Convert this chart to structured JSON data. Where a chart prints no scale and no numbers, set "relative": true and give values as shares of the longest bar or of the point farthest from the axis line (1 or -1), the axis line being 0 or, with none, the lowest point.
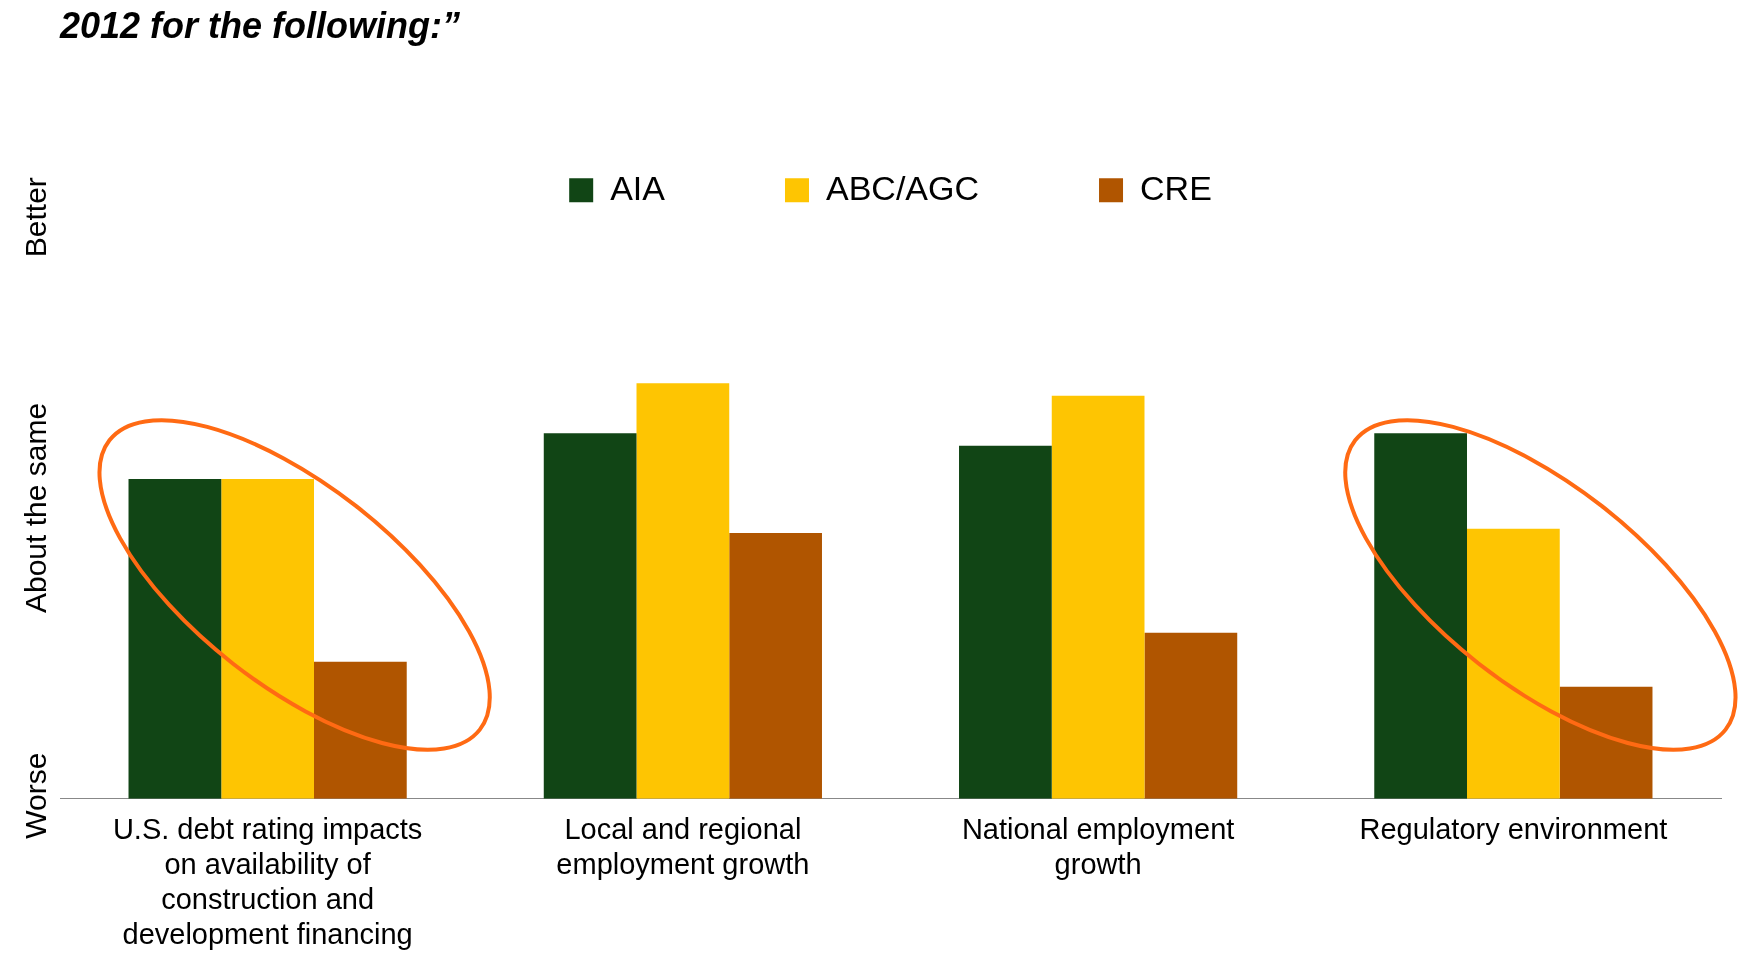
{
  "chart_data": {
    "type": "bar",
    "title": "2012 for the following:”",
    "categories": [
      "U.S. debt rating impacts on availability of construction and development financing",
      "Local and regional employment growth",
      "National employment growth",
      "Regulatory environment"
    ],
    "series": [
      {
        "name": "AIA",
        "color": "#114515",
        "values": [
          0.77,
          0.88,
          0.85,
          0.88
        ]
      },
      {
        "name": "ABC/AGC",
        "color": "#fec502",
        "values": [
          0.77,
          1,
          0.97,
          0.65
        ]
      },
      {
        "name": "CRE",
        "color": "#b05500",
        "values": [
          0.33,
          0.64,
          0.4,
          0.27
        ]
      }
    ],
    "relative": true,
    "annotations": [
      "Better",
      "About the same",
      "Worse"
    ],
    "legend": "top"
  }
}
